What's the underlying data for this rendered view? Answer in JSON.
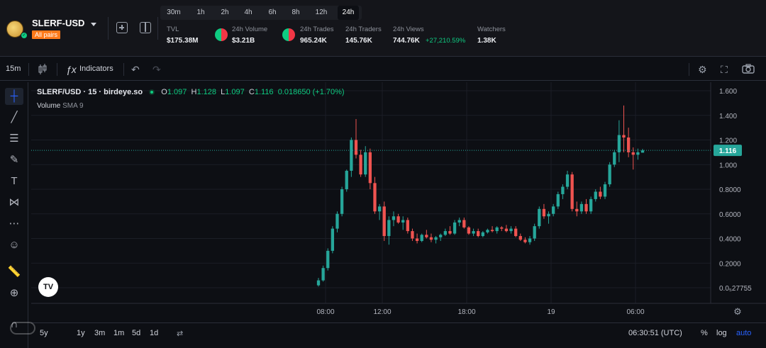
{
  "header": {
    "pair": "SLERF-USD",
    "badge": "All pairs",
    "timeframes": [
      "30m",
      "1h",
      "2h",
      "4h",
      "6h",
      "8h",
      "12h",
      "24h"
    ],
    "active_timeframe": "24h",
    "stats": {
      "tvl_label": "TVL",
      "tvl_value": "$175.38M",
      "volume_label": "24h Volume",
      "volume_value": "$3.21B",
      "trades_label": "24h Trades",
      "trades_value": "965.24K",
      "traders_label": "24h Traders",
      "traders_value": "145.76K",
      "views_label": "24h Views",
      "views_value": "744.76K",
      "views_delta": "+27,210.59%",
      "watchers_label": "Watchers",
      "watchers_value": "1.38K"
    }
  },
  "toolbar": {
    "interval": "15m",
    "indicators_label": "Indicators"
  },
  "legend": {
    "symbol": "SLERF/USD · 15 · birdeye.so",
    "o_label": "O",
    "o": "1.097",
    "h_label": "H",
    "h": "1.128",
    "l_label": "L",
    "l": "1.097",
    "c_label": "C",
    "c": "1.116",
    "change": "0.018650 (+1.70%)",
    "volume_label": "Volume",
    "volume_sma": "SMA 9"
  },
  "chart_data": {
    "type": "candlestick",
    "y_ticks": [
      "1.600",
      "1.400",
      "1.200",
      "1.000",
      "0.8000",
      "0.6000",
      "0.4000",
      "0.2000",
      "0.0₅27755"
    ],
    "x_ticks": [
      "08:00",
      "12:00",
      "18:00",
      "19",
      "06:00"
    ],
    "ylim": [
      0,
      1.6
    ],
    "last_price": "1.116",
    "last_price_value": 1.116,
    "colors": {
      "up": "#26a69a",
      "down": "#ef5350",
      "background": "#0d0f14"
    },
    "candles": [
      [
        0.02,
        0.08,
        0.01,
        0.06
      ],
      [
        0.06,
        0.18,
        0.05,
        0.16
      ],
      [
        0.16,
        0.32,
        0.14,
        0.3
      ],
      [
        0.3,
        0.5,
        0.28,
        0.48
      ],
      [
        0.48,
        0.62,
        0.45,
        0.6
      ],
      [
        0.6,
        0.82,
        0.58,
        0.8
      ],
      [
        0.8,
        0.96,
        0.78,
        0.95
      ],
      [
        0.95,
        1.22,
        0.9,
        1.2
      ],
      [
        1.2,
        1.37,
        1.05,
        1.08
      ],
      [
        1.08,
        1.12,
        0.9,
        0.92
      ],
      [
        0.92,
        1.15,
        0.9,
        1.1
      ],
      [
        1.1,
        1.13,
        0.8,
        0.85
      ],
      [
        0.85,
        0.9,
        0.6,
        0.62
      ],
      [
        0.62,
        0.68,
        0.55,
        0.66
      ],
      [
        0.66,
        0.7,
        0.38,
        0.42
      ],
      [
        0.42,
        0.58,
        0.35,
        0.55
      ],
      [
        0.55,
        0.62,
        0.5,
        0.58
      ],
      [
        0.58,
        0.6,
        0.52,
        0.53
      ],
      [
        0.53,
        0.58,
        0.47,
        0.55
      ],
      [
        0.55,
        0.57,
        0.44,
        0.46
      ],
      [
        0.46,
        0.48,
        0.38,
        0.4
      ],
      [
        0.4,
        0.44,
        0.36,
        0.38
      ],
      [
        0.38,
        0.44,
        0.37,
        0.43
      ],
      [
        0.43,
        0.47,
        0.4,
        0.41
      ],
      [
        0.41,
        0.44,
        0.37,
        0.39
      ],
      [
        0.39,
        0.42,
        0.36,
        0.41
      ],
      [
        0.41,
        0.44,
        0.38,
        0.43
      ],
      [
        0.43,
        0.48,
        0.42,
        0.46
      ],
      [
        0.46,
        0.5,
        0.43,
        0.44
      ],
      [
        0.44,
        0.55,
        0.43,
        0.53
      ],
      [
        0.53,
        0.57,
        0.5,
        0.55
      ],
      [
        0.55,
        0.57,
        0.48,
        0.49
      ],
      [
        0.49,
        0.5,
        0.43,
        0.44
      ],
      [
        0.44,
        0.48,
        0.42,
        0.46
      ],
      [
        0.46,
        0.48,
        0.41,
        0.42
      ],
      [
        0.42,
        0.46,
        0.41,
        0.45
      ],
      [
        0.45,
        0.48,
        0.44,
        0.47
      ],
      [
        0.47,
        0.5,
        0.45,
        0.46
      ],
      [
        0.46,
        0.5,
        0.44,
        0.49
      ],
      [
        0.49,
        0.5,
        0.46,
        0.48
      ],
      [
        0.48,
        0.51,
        0.45,
        0.46
      ],
      [
        0.46,
        0.5,
        0.44,
        0.48
      ],
      [
        0.48,
        0.5,
        0.41,
        0.42
      ],
      [
        0.42,
        0.44,
        0.38,
        0.39
      ],
      [
        0.39,
        0.41,
        0.36,
        0.37
      ],
      [
        0.37,
        0.42,
        0.35,
        0.4
      ],
      [
        0.4,
        0.52,
        0.38,
        0.5
      ],
      [
        0.5,
        0.66,
        0.48,
        0.64
      ],
      [
        0.64,
        0.68,
        0.56,
        0.58
      ],
      [
        0.58,
        0.62,
        0.52,
        0.6
      ],
      [
        0.6,
        0.68,
        0.58,
        0.66
      ],
      [
        0.66,
        0.78,
        0.64,
        0.76
      ],
      [
        0.76,
        0.84,
        0.72,
        0.82
      ],
      [
        0.82,
        0.95,
        0.8,
        0.92
      ],
      [
        0.92,
        0.94,
        0.62,
        0.64
      ],
      [
        0.64,
        0.7,
        0.58,
        0.62
      ],
      [
        0.62,
        0.7,
        0.6,
        0.68
      ],
      [
        0.68,
        0.72,
        0.6,
        0.62
      ],
      [
        0.62,
        0.74,
        0.6,
        0.72
      ],
      [
        0.72,
        0.8,
        0.7,
        0.78
      ],
      [
        0.78,
        0.82,
        0.72,
        0.74
      ],
      [
        0.74,
        0.86,
        0.72,
        0.84
      ],
      [
        0.84,
        1.02,
        0.82,
        1.0
      ],
      [
        1.0,
        1.12,
        0.98,
        1.1
      ],
      [
        1.1,
        1.36,
        1.02,
        1.24
      ],
      [
        1.24,
        1.48,
        1.1,
        1.22
      ],
      [
        1.22,
        1.3,
        1.06,
        1.1
      ],
      [
        1.1,
        1.14,
        0.96,
        1.08
      ],
      [
        1.08,
        1.13,
        1.04,
        1.1
      ],
      [
        1.097,
        1.128,
        1.097,
        1.116
      ]
    ]
  },
  "bottom": {
    "ranges": [
      "5y",
      "1y",
      "3m",
      "1m",
      "5d",
      "1d"
    ],
    "time": "06:30:51 (UTC)",
    "percent_label": "%",
    "log_label": "log",
    "auto_label": "auto"
  }
}
